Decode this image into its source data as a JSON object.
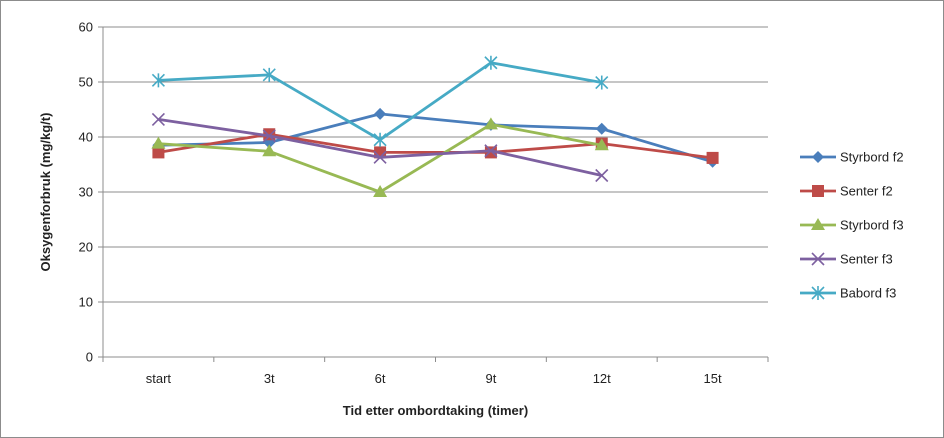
{
  "chart_data": {
    "type": "line",
    "title": "",
    "xlabel": "Tid etter ombordtaking (timer)",
    "ylabel": "Oksygenforbruk (mg/kg/t)",
    "categories": [
      "start",
      "3t",
      "6t",
      "9t",
      "12t",
      "15t"
    ],
    "ylim": [
      0,
      60
    ],
    "yticks": [
      0,
      10,
      20,
      30,
      40,
      50,
      60
    ],
    "grid": true,
    "legend_position": "right",
    "series": [
      {
        "name": "Styrbord f2",
        "color": "#4a7ebb",
        "marker": "diamond",
        "values": [
          38.5,
          39,
          44.2,
          42.2,
          41.5,
          35.5
        ]
      },
      {
        "name": "Senter f2",
        "color": "#be4b48",
        "marker": "square",
        "values": [
          37.2,
          40.5,
          37.2,
          37.2,
          38.8,
          36.2
        ]
      },
      {
        "name": "Styrbord f3",
        "color": "#98b954",
        "marker": "triangle",
        "values": [
          38.8,
          37.4,
          30,
          42.3,
          38.5,
          null
        ]
      },
      {
        "name": "Senter f3",
        "color": "#7d60a0",
        "marker": "x",
        "values": [
          43.2,
          40.2,
          36.3,
          37.5,
          33,
          null
        ]
      },
      {
        "name": "Babord f3",
        "color": "#46aac5",
        "marker": "star",
        "values": [
          50.3,
          51.3,
          39.5,
          53.5,
          49.9,
          null
        ]
      }
    ]
  }
}
